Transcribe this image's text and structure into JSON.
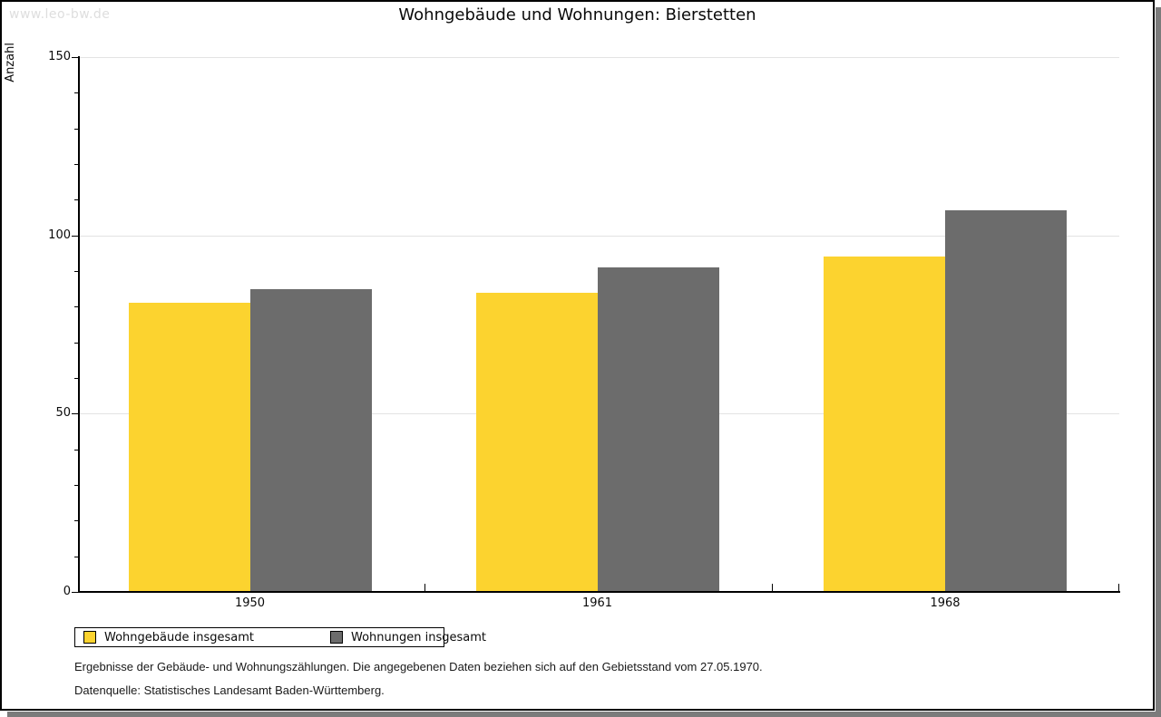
{
  "watermark": "www.leo-bw.de",
  "title": "Wohngebäude und Wohnungen: Bierstetten",
  "y_axis_title": "Anzahl",
  "legend": {
    "items": [
      {
        "label": "Wohngebäude insgesamt",
        "color": "#fcd32f"
      },
      {
        "label": "Wohnungen insgesamt",
        "color": "#6c6c6c"
      }
    ]
  },
  "footer": {
    "line1": "Ergebnisse der Gebäude- und Wohnungszählungen. Die angegebenen Daten beziehen sich auf den Gebietsstand vom 27.05.1970.",
    "line2": "Datenquelle: Statistisches Landesamt Baden-Württemberg."
  },
  "chart_data": {
    "type": "bar",
    "title": "Wohngebäude und Wohnungen: Bierstetten",
    "categories": [
      "1950",
      "1961",
      "1968"
    ],
    "series": [
      {
        "name": "Wohngebäude insgesamt",
        "color": "#fcd32f",
        "values": [
          81,
          84,
          94
        ]
      },
      {
        "name": "Wohnungen insgesamt",
        "color": "#6c6c6c",
        "values": [
          85,
          91,
          107
        ]
      }
    ],
    "xlabel": "",
    "ylabel": "Anzahl",
    "ylim": [
      0,
      150
    ],
    "yticks": [
      0,
      50,
      100,
      150
    ],
    "minor_tick_step": 10,
    "grid": "horizontal-major",
    "legend_position": "bottom-left"
  }
}
